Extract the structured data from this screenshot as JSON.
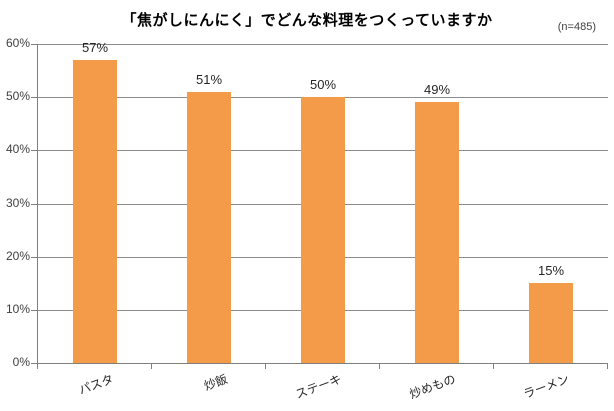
{
  "chart": {
    "title": "「焦がしにんにく」でどんな料理をつくっていますか",
    "sample_note": "(n=485)"
  },
  "chart_data": {
    "type": "bar",
    "title": "「焦がしにんにく」でどんな料理をつくっていますか",
    "subtitle": "(n=485)",
    "categories": [
      "パスタ",
      "炒飯",
      "ステーキ",
      "炒めもの",
      "ラーメン"
    ],
    "values": [
      57,
      51,
      50,
      49,
      15
    ],
    "value_labels": [
      "57%",
      "51%",
      "50%",
      "49%",
      "15%"
    ],
    "xlabel": "",
    "ylabel": "",
    "ylim": [
      0,
      60
    ],
    "y_tick_step": 10,
    "y_ticks": [
      "0%",
      "10%",
      "20%",
      "30%",
      "40%",
      "50%",
      "60%"
    ],
    "grid": true,
    "legend": "none",
    "x_label_rotation_deg": -20,
    "bar_color": "#F49B49",
    "gridline_color": "#8c8c8c",
    "axis_color": "#7f7f7f",
    "value_label_color": "#262626"
  }
}
